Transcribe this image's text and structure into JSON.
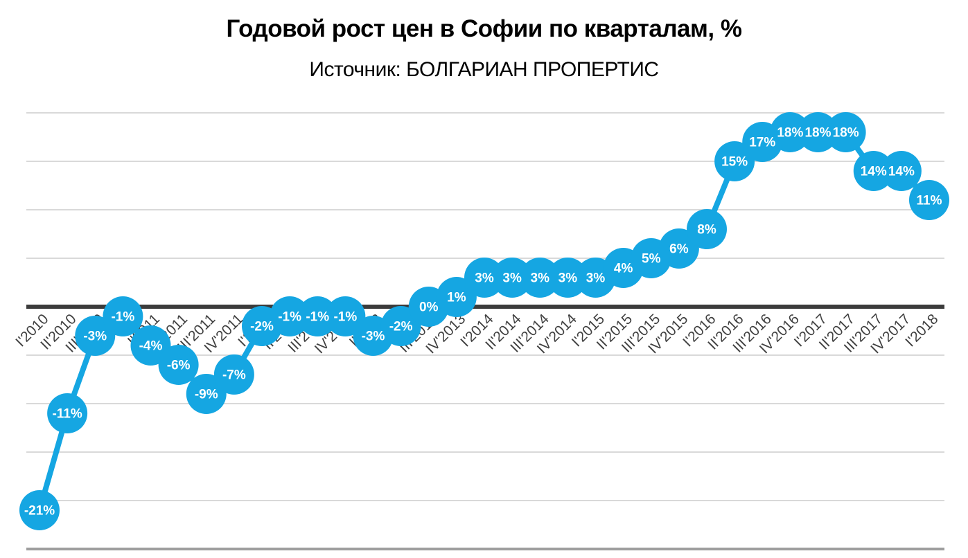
{
  "chart_data": {
    "type": "line",
    "title": "Годовой рост цен в Софии по кварталам, %",
    "subtitle": "Источник: БОЛГАРИАН ПРОПЕРТИС",
    "categories": [
      "I'2010",
      "II'2010",
      "III'2010",
      "IV'2010",
      "I'2011",
      "II'2011",
      "III'2011",
      "IV'2011",
      "I'2012",
      "II'2012",
      "III'2012",
      "IV'2012",
      "I'2013",
      "II'2013",
      "III'2013",
      "IV'2013",
      "I'2014",
      "II'2014",
      "III'2014",
      "IV'2014",
      "I'2015",
      "II'2015",
      "III'2015",
      "IV'2015",
      "I'2016",
      "II'2016",
      "III'2016",
      "IV'2016",
      "I'2017",
      "II'2017",
      "III'2017",
      "IV'2017",
      "I'2018"
    ],
    "values": [
      -21,
      -11,
      -3,
      -1,
      -4,
      -6,
      -9,
      -7,
      -2,
      -1,
      -1,
      -1,
      -3,
      -2,
      0,
      1,
      3,
      3,
      3,
      3,
      3,
      4,
      5,
      6,
      8,
      15,
      17,
      18,
      18,
      18,
      14,
      14,
      11
    ],
    "unit": "%",
    "xlabel": "",
    "ylabel": "",
    "ylim": [
      -25,
      20
    ],
    "grid_step": 5,
    "grid": true,
    "legend": "none",
    "data_label_position": "center",
    "x_label_rotation": -45,
    "colors": {
      "series": "#15A6E2",
      "gridline": "#D9D9D9",
      "zero_line": "#3B3B3B",
      "bottom_line": "#9E9E9E",
      "axis_text": "#404040",
      "data_label_text": "#FFFFFF",
      "title_text": "#000000"
    }
  }
}
